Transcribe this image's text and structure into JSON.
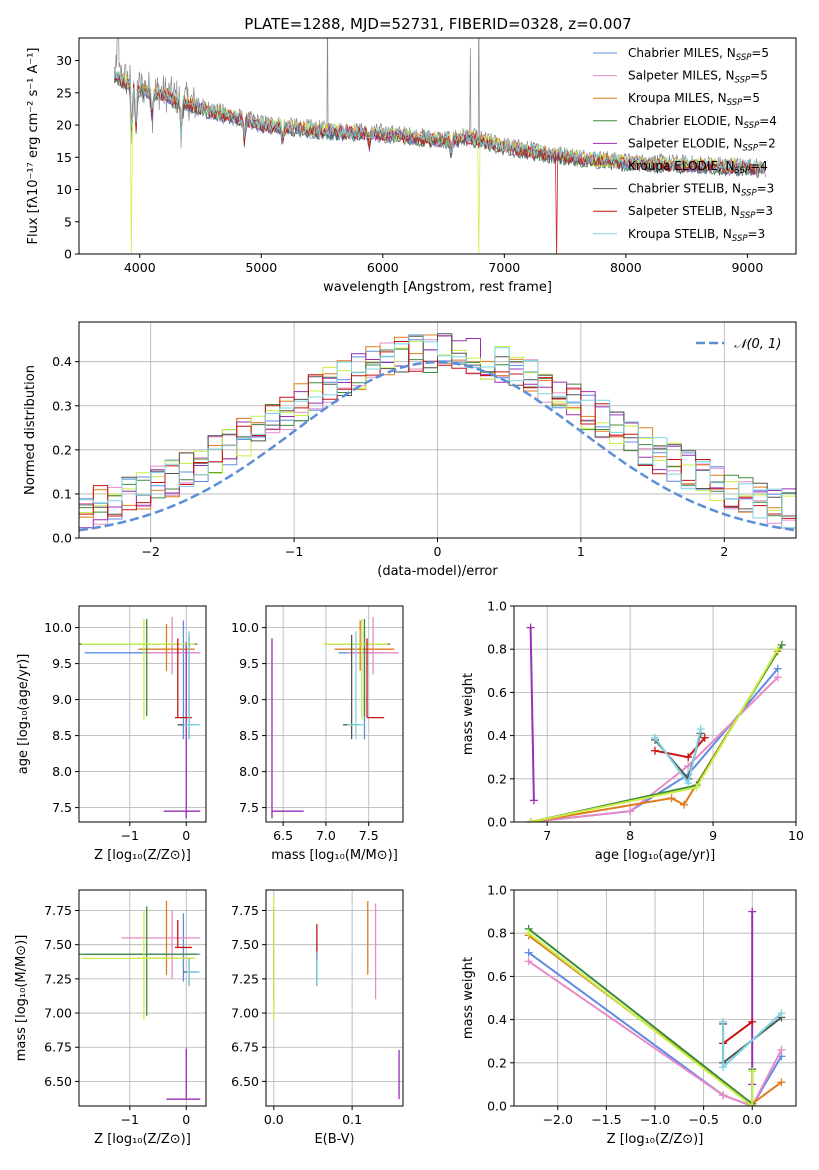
{
  "colors": {
    "chabrier_miles": "#5f8ce0",
    "salpeter_miles": "#e88ac8",
    "kroupa_miles": "#e07b1e",
    "chabrier_elodie": "#3f8a3f",
    "salpeter_elodie": "#9a2fb4",
    "kroupa_elodie": "#c9ef45",
    "chabrier_stelib": "#555555",
    "salpeter_stelib": "#c81414",
    "kroupa_stelib": "#7ed4e0",
    "grid": "#b0b0b0",
    "normal": "#5b8fd6"
  },
  "chart_data": [
    {
      "type": "line",
      "title": "PLATE=1288, MJD=52731, FIBERID=0328, z=0.007",
      "xlabel": "wavelength [Angstrom, rest frame]",
      "ylabel": "Flux [fλ10⁻¹⁷ erg cm⁻² s⁻¹ A⁻¹]",
      "xlim": [
        3500,
        9400
      ],
      "ylim": [
        0,
        33.5
      ],
      "xticks": [
        4000,
        5000,
        6000,
        7000,
        8000,
        9000
      ],
      "yticks": [
        0,
        5,
        10,
        15,
        20,
        25,
        30
      ],
      "grid": false,
      "legend": "top-right",
      "series": [
        {
          "name": "Chabrier MILES, N",
          "sub": "SSP",
          "tail": "=5",
          "key": "chabrier_miles"
        },
        {
          "name": "Salpeter MILES, N",
          "sub": "SSP",
          "tail": "=5",
          "key": "salpeter_miles"
        },
        {
          "name": "Kroupa MILES, N",
          "sub": "SSP",
          "tail": "=5",
          "key": "kroupa_miles"
        },
        {
          "name": "Chabrier ELODIE, N",
          "sub": "SSP",
          "tail": "=4",
          "key": "chabrier_elodie"
        },
        {
          "name": "Salpeter ELODIE, N",
          "sub": "SSP",
          "tail": "=2",
          "key": "salpeter_elodie"
        },
        {
          "name": "Kroupa ELODIE, N",
          "sub": "SSP",
          "tail": "=4",
          "key": "kroupa_elodie"
        },
        {
          "name": "Chabrier STELIB, N",
          "sub": "SSP",
          "tail": "=3",
          "key": "chabrier_stelib"
        },
        {
          "name": "Salpeter STELIB, N",
          "sub": "SSP",
          "tail": "=3",
          "key": "salpeter_stelib"
        },
        {
          "name": "Kroupa STELIB, N",
          "sub": "SSP",
          "tail": "=3",
          "key": "kroupa_stelib"
        }
      ],
      "continuum": {
        "x": [
          3800,
          3900,
          4000,
          4200,
          4500,
          4800,
          5000,
          5500,
          6000,
          6500,
          6700,
          7000,
          7500,
          8000,
          8500,
          9000,
          9150
        ],
        "y": [
          28,
          27,
          26,
          25,
          23,
          21.5,
          20.5,
          19.5,
          19,
          18,
          18.5,
          17,
          15.5,
          14.5,
          14.2,
          13.8,
          13.5
        ]
      }
    },
    {
      "type": "line",
      "xlabel": "(data-model)/error",
      "ylabel": "Normed distribution",
      "xlim": [
        -2.5,
        2.5
      ],
      "ylim": [
        0,
        0.49
      ],
      "xticks": [
        -2,
        -1,
        0,
        1,
        2
      ],
      "yticks": [
        0.0,
        0.1,
        0.2,
        0.3,
        0.4
      ],
      "grid": true,
      "legend": "top-right",
      "normal_label": "𝒩(0, 1)",
      "histogram_bin_width": 0.1
    },
    {
      "type": "scatter",
      "xlabel": "Z [log₁₀(Z/Z⊙)]",
      "ylabel": "age  [log₁₀(age/yr)]",
      "xlim": [
        -1.9,
        0.35
      ],
      "ylim": [
        7.3,
        10.3
      ],
      "xticks": [
        -1,
        0
      ],
      "yticks": [
        7.5,
        8.0,
        8.5,
        9.0,
        9.5,
        10.0
      ],
      "grid": true,
      "crosses": [
        {
          "key": "chabrier_miles",
          "x": -0.05,
          "xerr": [
            1.75,
            0.3
          ],
          "y": 9.65,
          "yerr": [
            1.2,
            0.45
          ]
        },
        {
          "key": "salpeter_miles",
          "x": -0.25,
          "xerr": [
            0.5,
            0.5
          ],
          "y": 9.65,
          "yerr": [
            0.3,
            0.5
          ]
        },
        {
          "key": "kroupa_miles",
          "x": -0.35,
          "xerr": [
            0.5,
            0.5
          ],
          "y": 9.7,
          "yerr": [
            0.3,
            0.35
          ]
        },
        {
          "key": "chabrier_elodie",
          "x": -0.7,
          "xerr": [
            1.2,
            0.9
          ],
          "y": 9.77,
          "yerr": [
            1.0,
            0.35
          ]
        },
        {
          "key": "salpeter_elodie",
          "x": 0.0,
          "xerr": [
            0.4,
            0.25
          ],
          "y": 7.45,
          "yerr": [
            0.1,
            2.35
          ]
        },
        {
          "key": "kroupa_elodie",
          "x": -0.75,
          "xerr": [
            1.1,
            0.9
          ],
          "y": 9.77,
          "yerr": [
            1.05,
            0.35
          ]
        },
        {
          "key": "chabrier_stelib",
          "x": 0.05,
          "xerr": [
            0.2,
            0.15
          ],
          "y": 8.65,
          "yerr": [
            0.2,
            1.25
          ]
        },
        {
          "key": "salpeter_stelib",
          "x": -0.15,
          "xerr": [
            0.05,
            0.25
          ],
          "y": 8.75,
          "yerr": [
            0.0,
            1.1
          ]
        },
        {
          "key": "kroupa_stelib",
          "x": 0.05,
          "xerr": [
            0.1,
            0.2
          ],
          "y": 8.65,
          "yerr": [
            0.2,
            1.3
          ]
        }
      ]
    },
    {
      "type": "scatter",
      "xlabel": "mass [log₁₀(M/M⊙)]",
      "xlim": [
        6.3,
        7.9
      ],
      "ylim": [
        7.3,
        10.3
      ],
      "xticks": [
        6.5,
        7.0,
        7.5
      ],
      "yticks": [
        7.5,
        8.0,
        8.5,
        9.0,
        9.5,
        10.0
      ],
      "grid": true,
      "crosses": [
        {
          "key": "chabrier_miles",
          "x": 7.45,
          "xerr": [
            0.3,
            0.2
          ],
          "y": 9.65,
          "yerr": [
            1.2,
            0.3
          ]
        },
        {
          "key": "salpeter_miles",
          "x": 7.55,
          "xerr": [
            0.3,
            0.3
          ],
          "y": 9.65,
          "yerr": [
            0.3,
            0.5
          ]
        },
        {
          "key": "kroupa_miles",
          "x": 7.4,
          "xerr": [
            0.3,
            0.4
          ],
          "y": 9.7,
          "yerr": [
            0.3,
            0.4
          ]
        },
        {
          "key": "chabrier_elodie",
          "x": 7.45,
          "xerr": [
            0.45,
            0.3
          ],
          "y": 9.77,
          "yerr": [
            1.0,
            0.35
          ]
        },
        {
          "key": "salpeter_elodie",
          "x": 6.37,
          "xerr": [
            0.0,
            0.37
          ],
          "y": 7.45,
          "yerr": [
            0.1,
            2.4
          ]
        },
        {
          "key": "kroupa_elodie",
          "x": 7.42,
          "xerr": [
            0.45,
            0.3
          ],
          "y": 9.77,
          "yerr": [
            1.05,
            0.35
          ]
        },
        {
          "key": "chabrier_stelib",
          "x": 7.3,
          "xerr": [
            0.1,
            0.1
          ],
          "y": 8.65,
          "yerr": [
            0.2,
            1.25
          ]
        },
        {
          "key": "salpeter_stelib",
          "x": 7.48,
          "xerr": [
            0.0,
            0.2
          ],
          "y": 8.75,
          "yerr": [
            0.0,
            1.1
          ]
        },
        {
          "key": "kroupa_stelib",
          "x": 7.35,
          "xerr": [
            0.1,
            0.1
          ],
          "y": 8.65,
          "yerr": [
            0.2,
            1.3
          ]
        }
      ]
    },
    {
      "type": "line",
      "xlabel": "age  [log₁₀(age/yr)]",
      "ylabel": "mass weight",
      "xlim": [
        6.6,
        10
      ],
      "ylim": [
        0,
        1
      ],
      "xticks": [
        7,
        8,
        9,
        10
      ],
      "yticks": [
        0.0,
        0.2,
        0.4,
        0.6,
        0.8,
        1.0
      ],
      "grid": true,
      "series": [
        {
          "key": "chabrier_miles",
          "x": [
            6.8,
            8.0,
            8.7,
            9.78
          ],
          "y": [
            0.0,
            0.05,
            0.22,
            0.71
          ]
        },
        {
          "key": "salpeter_miles",
          "x": [
            6.8,
            8.0,
            8.7,
            9.78
          ],
          "y": [
            0.0,
            0.05,
            0.26,
            0.67
          ]
        },
        {
          "key": "kroupa_miles",
          "x": [
            6.8,
            8.5,
            8.65,
            9.78
          ],
          "y": [
            0.0,
            0.11,
            0.08,
            0.79
          ]
        },
        {
          "key": "chabrier_elodie",
          "x": [
            6.8,
            8.8,
            9.83
          ],
          "y": [
            0.0,
            0.17,
            0.82
          ]
        },
        {
          "key": "salpeter_elodie",
          "x": [
            6.8,
            6.84
          ],
          "y": [
            0.9,
            0.1
          ]
        },
        {
          "key": "kroupa_elodie",
          "x": [
            6.8,
            8.8,
            9.78
          ],
          "y": [
            0.0,
            0.16,
            0.8
          ]
        },
        {
          "key": "chabrier_stelib",
          "x": [
            8.3,
            8.7,
            8.85
          ],
          "y": [
            0.38,
            0.2,
            0.41
          ]
        },
        {
          "key": "salpeter_stelib",
          "x": [
            8.3,
            8.7,
            8.9
          ],
          "y": [
            0.33,
            0.3,
            0.39
          ]
        },
        {
          "key": "kroupa_stelib",
          "x": [
            8.3,
            8.7,
            8.85
          ],
          "y": [
            0.39,
            0.18,
            0.43
          ]
        }
      ]
    },
    {
      "type": "scatter",
      "xlabel": "Z [log₁₀(Z/Z⊙)]",
      "ylabel": "mass [log₁₀(M/M⊙)]",
      "xlim": [
        -1.9,
        0.35
      ],
      "ylim": [
        6.32,
        7.9
      ],
      "xticks": [
        -1,
        0
      ],
      "yticks": [
        6.5,
        6.75,
        7.0,
        7.25,
        7.5,
        7.75
      ],
      "grid": true,
      "crosses": [
        {
          "key": "chabrier_miles",
          "x": -0.05,
          "xerr": [
            1.75,
            0.3
          ],
          "y": 7.43,
          "yerr": [
            0.2,
            0.3
          ]
        },
        {
          "key": "salpeter_miles",
          "x": -0.25,
          "xerr": [
            0.9,
            0.5
          ],
          "y": 7.55,
          "yerr": [
            0.3,
            0.2
          ]
        },
        {
          "key": "kroupa_miles",
          "x": -0.35,
          "xerr": [
            0.5,
            0.5
          ],
          "y": 7.4,
          "yerr": [
            0.12,
            0.42
          ]
        },
        {
          "key": "chabrier_elodie",
          "x": -0.7,
          "xerr": [
            1.2,
            0.9
          ],
          "y": 7.43,
          "yerr": [
            0.45,
            0.35
          ]
        },
        {
          "key": "salpeter_elodie",
          "x": 0.0,
          "xerr": [
            0.35,
            0.25
          ],
          "y": 6.37,
          "yerr": [
            0.0,
            0.37
          ]
        },
        {
          "key": "kroupa_elodie",
          "x": -0.75,
          "xerr": [
            1.1,
            0.9
          ],
          "y": 7.4,
          "yerr": [
            0.45,
            0.35
          ]
        },
        {
          "key": "chabrier_stelib",
          "x": 0.05,
          "xerr": [
            0.1,
            0.15
          ],
          "y": 7.3,
          "yerr": [
            0.1,
            0.1
          ]
        },
        {
          "key": "salpeter_stelib",
          "x": -0.15,
          "xerr": [
            0.05,
            0.25
          ],
          "y": 7.48,
          "yerr": [
            0.0,
            0.2
          ]
        },
        {
          "key": "kroupa_stelib",
          "x": 0.05,
          "xerr": [
            0.05,
            0.2
          ],
          "y": 7.3,
          "yerr": [
            0.1,
            0.1
          ]
        }
      ]
    },
    {
      "type": "scatter",
      "xlabel": "E(B-V)",
      "xlim": [
        -0.01,
        0.165
      ],
      "ylim": [
        6.32,
        7.9
      ],
      "xticks": [
        0.0,
        0.1
      ],
      "yticks": [
        6.5,
        6.75,
        7.0,
        7.25,
        7.5,
        7.75
      ],
      "grid": true,
      "crosses": [
        {
          "key": "chabrier_miles",
          "x": 0.055,
          "xerr": [
            0,
            0
          ],
          "y": 7.35,
          "yerr": [
            0.15,
            0.15
          ]
        },
        {
          "key": "salpeter_miles",
          "x": 0.0,
          "xerr": [
            0,
            0
          ],
          "y": 7.55,
          "yerr": [
            0.2,
            0.2
          ]
        },
        {
          "key": "kroupa_miles",
          "x": 0.12,
          "xerr": [
            0,
            0
          ],
          "y": 7.55,
          "yerr": [
            0.27,
            0.27
          ]
        },
        {
          "key": "chabrier_elodie",
          "x": 0.0,
          "xerr": [
            0,
            0
          ],
          "y": 7.43,
          "yerr": [
            0.35,
            0.35
          ]
        },
        {
          "key": "salpeter_elodie",
          "x": 0.16,
          "xerr": [
            0,
            0
          ],
          "y": 6.55,
          "yerr": [
            0.18,
            0.18
          ]
        },
        {
          "key": "kroupa_elodie",
          "x": 0.0,
          "xerr": [
            0,
            0
          ],
          "y": 7.4,
          "yerr": [
            0.45,
            0.45
          ]
        },
        {
          "key": "chabrier_stelib",
          "x": 0.055,
          "xerr": [
            0,
            0
          ],
          "y": 7.3,
          "yerr": [
            0.1,
            0.1
          ]
        },
        {
          "key": "salpeter_stelib",
          "x": 0.055,
          "xerr": [
            0,
            0
          ],
          "y": 7.55,
          "yerr": [
            0.1,
            0.1
          ]
        },
        {
          "key": "kroupa_stelib",
          "x": 0.055,
          "xerr": [
            0,
            0
          ],
          "y": 7.3,
          "yerr": [
            0.1,
            0.1
          ]
        },
        {
          "key": "salpeter_miles",
          "x": 0.13,
          "xerr": [
            0,
            0
          ],
          "y": 7.45,
          "yerr": [
            0.35,
            0.35
          ]
        }
      ]
    },
    {
      "type": "line",
      "xlabel": "Z [log₁₀(Z/Z⊙)]",
      "ylabel": "mass weight",
      "xlim": [
        -2.45,
        0.45
      ],
      "ylim": [
        0,
        1
      ],
      "xticks": [
        -2.0,
        -1.5,
        -1.0,
        -0.5,
        0.0
      ],
      "yticks": [
        0.0,
        0.2,
        0.4,
        0.6,
        0.8,
        1.0
      ],
      "grid": true,
      "series": [
        {
          "key": "chabrier_miles",
          "x": [
            -2.3,
            -0.3,
            0.0,
            0.3
          ],
          "y": [
            0.71,
            0.05,
            0.0,
            0.23
          ]
        },
        {
          "key": "salpeter_miles",
          "x": [
            -2.3,
            -0.3,
            0.0,
            0.3
          ],
          "y": [
            0.67,
            0.05,
            0.0,
            0.26
          ]
        },
        {
          "key": "kroupa_miles",
          "x": [
            -2.3,
            0.0,
            0.3
          ],
          "y": [
            0.79,
            0.01,
            0.11
          ]
        },
        {
          "key": "chabrier_elodie",
          "x": [
            -2.3,
            0.0,
            0.0
          ],
          "y": [
            0.82,
            0.01,
            0.17
          ]
        },
        {
          "key": "salpeter_elodie",
          "x": [
            0.0,
            0.0
          ],
          "y": [
            0.9,
            0.1
          ]
        },
        {
          "key": "kroupa_elodie",
          "x": [
            -2.3,
            0.0,
            0.0
          ],
          "y": [
            0.8,
            0.0,
            0.16
          ]
        },
        {
          "key": "chabrier_stelib",
          "x": [
            -0.3,
            -0.3,
            0.3
          ],
          "y": [
            0.38,
            0.2,
            0.41
          ]
        },
        {
          "key": "salpeter_stelib",
          "x": [
            -0.3,
            0.0
          ],
          "y": [
            0.29,
            0.39
          ]
        },
        {
          "key": "kroupa_stelib",
          "x": [
            -0.3,
            -0.3,
            0.3
          ],
          "y": [
            0.39,
            0.18,
            0.43
          ]
        }
      ]
    }
  ]
}
